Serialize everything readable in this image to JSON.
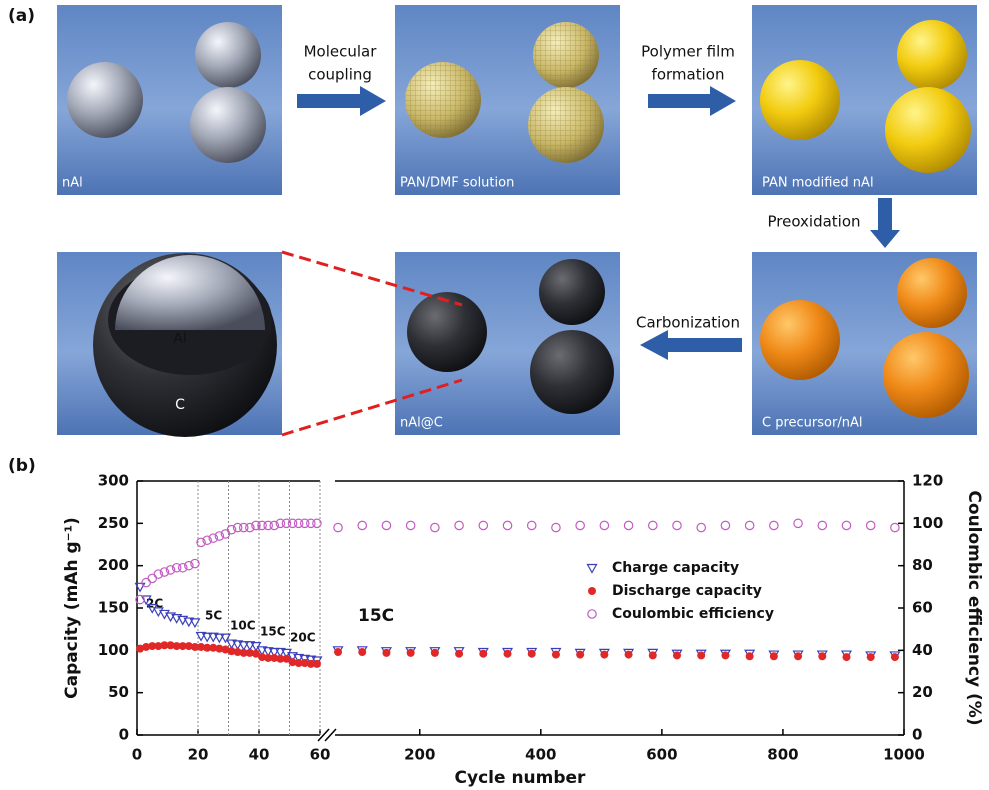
{
  "panel_a": {
    "label": "(a)",
    "images": [
      "nAl",
      "PAN/DMF solution",
      "PAN modified nAl",
      "C precursor/nAl",
      "nAl@C"
    ],
    "inset_labels": [
      "Al",
      "C"
    ],
    "steps": [
      {
        "lines": [
          "Molecular",
          "coupling"
        ]
      },
      {
        "lines": [
          "Polymer film",
          "formation"
        ]
      },
      {
        "lines": [
          "Preoxidation"
        ]
      },
      {
        "lines": [
          "Carbonization"
        ]
      }
    ]
  },
  "chart_data": {
    "type": "scatter",
    "panel_label": "(b)",
    "xlabel": "Cycle number",
    "ylabel": "Capacity (mAh g⁻¹)",
    "y2label": "Coulombic efficiency (%)",
    "x_segments": [
      {
        "xlim": [
          0,
          60
        ],
        "xticks": [
          0,
          20,
          40,
          60
        ]
      },
      {
        "xlim": [
          60,
          1000
        ],
        "xticks": [
          200,
          400,
          600,
          800,
          1000
        ]
      }
    ],
    "ylim": [
      0,
      300
    ],
    "yticks": [
      0,
      50,
      100,
      150,
      200,
      250,
      300
    ],
    "y2lim": [
      0,
      120
    ],
    "y2ticks": [
      0,
      20,
      40,
      60,
      80,
      100,
      120
    ],
    "rate_boundaries": [
      20,
      30,
      40,
      50,
      60
    ],
    "annotations": [
      "2C",
      "5C",
      "10C",
      "15C",
      "20C",
      "15C"
    ],
    "x": [
      1,
      3,
      5,
      7,
      9,
      11,
      13,
      15,
      17,
      19,
      21,
      23,
      25,
      27,
      29,
      31,
      33,
      35,
      37,
      39,
      41,
      43,
      45,
      47,
      49,
      51,
      53,
      55,
      57,
      59,
      65,
      105,
      145,
      185,
      225,
      265,
      305,
      345,
      385,
      425,
      465,
      505,
      545,
      585,
      625,
      665,
      705,
      745,
      785,
      825,
      865,
      905,
      945,
      985
    ],
    "series": [
      {
        "name": "Charge capacity",
        "color": "#3a3fb8",
        "marker": "triangle-down",
        "values": [
          175,
          160,
          150,
          146,
          143,
          140,
          138,
          136,
          134,
          133,
          117,
          116,
          116,
          115,
          115,
          108,
          107,
          106,
          106,
          105,
          100,
          99,
          98,
          98,
          97,
          93,
          91,
          90,
          89,
          88,
          100,
          100,
          99,
          99,
          99,
          99,
          98,
          98,
          98,
          98,
          97,
          97,
          97,
          97,
          96,
          96,
          96,
          96,
          95,
          95,
          95,
          95,
          94,
          94
        ]
      },
      {
        "name": "Discharge capacity",
        "color": "#e02828",
        "marker": "circle-filled",
        "values": [
          102,
          104,
          105,
          105,
          106,
          106,
          105,
          105,
          105,
          104,
          104,
          103,
          103,
          102,
          101,
          99,
          98,
          97,
          97,
          96,
          92,
          91,
          91,
          90,
          90,
          86,
          85,
          85,
          84,
          84,
          98,
          98,
          97,
          97,
          97,
          96,
          96,
          96,
          96,
          95,
          95,
          95,
          95,
          94,
          94,
          94,
          94,
          93,
          93,
          93,
          93,
          92,
          92,
          92
        ]
      },
      {
        "name": "Coulombic efficiency",
        "color": "#c25cc2",
        "marker": "circle-open",
        "axis": "y2",
        "values": [
          64,
          72,
          74,
          76,
          77,
          78,
          79,
          79,
          80,
          81,
          91,
          92,
          93,
          94,
          95,
          97,
          98,
          98,
          98,
          99,
          99,
          99,
          99,
          100,
          100,
          100,
          100,
          100,
          100,
          100,
          98,
          99,
          99,
          99,
          98,
          99,
          99,
          99,
          99,
          98,
          99,
          99,
          99,
          99,
          99,
          98,
          99,
          99,
          99,
          100,
          99,
          99,
          99,
          98
        ]
      }
    ]
  }
}
